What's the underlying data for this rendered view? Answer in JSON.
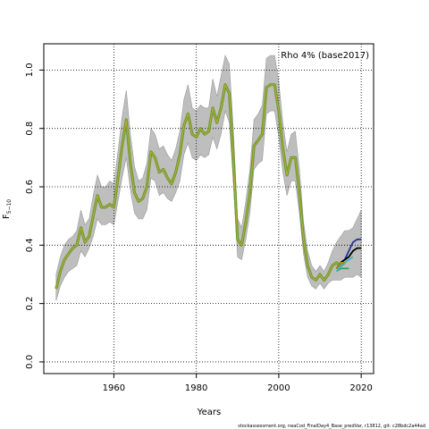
{
  "chart_data": {
    "type": "line",
    "title": "",
    "legend_text": "Rho 4% (base2017)",
    "xlabel": "Years",
    "ylabel_base": "F",
    "ylabel_sub": "5−10",
    "xlim": [
      1943,
      2023
    ],
    "ylim": [
      -0.04,
      1.09
    ],
    "xticks": [
      1960,
      1980,
      2000,
      2020
    ],
    "yticks": [
      0.0,
      0.2,
      0.4,
      0.6,
      0.8,
      1.0
    ],
    "ytick_labels": [
      "0.0",
      "0.2",
      "0.4",
      "0.6",
      "0.8",
      "1.0"
    ],
    "grid": "dotted",
    "legend_position": "top-right",
    "footer": "stockassessment.org, neaCod_FinalDay4_Base_predVar, r13812, git: c28bdc2a44ad",
    "colors": {
      "band": "#bebebe",
      "band_edge": "#999999",
      "main": "#6f9a33",
      "retro": [
        "#2ca25f",
        "#41b6c4",
        "#253494",
        "#000000",
        "#b8860b"
      ]
    },
    "series": [
      {
        "x": [
          1946,
          1947,
          1948,
          1949,
          1950,
          1951,
          1952,
          1953,
          1954,
          1955,
          1956,
          1957,
          1958,
          1959,
          1960,
          1961,
          1962,
          1963,
          1964,
          1965,
          1966,
          1967,
          1968,
          1969,
          1970,
          1971,
          1972,
          1973,
          1974,
          1975,
          1976,
          1977,
          1978,
          1979,
          1980,
          1981,
          1982,
          1983,
          1984,
          1985,
          1986,
          1987,
          1988,
          1989,
          1990,
          1991,
          1992,
          1993,
          1994,
          1995,
          1996,
          1997,
          1998,
          1999,
          2000,
          2001,
          2002,
          2003,
          2004,
          2005,
          2006,
          2007,
          2008,
          2009,
          2010,
          2011,
          2012,
          2013,
          2014,
          2015,
          2016
        ],
        "y": [
          0.25,
          0.31,
          0.35,
          0.37,
          0.39,
          0.4,
          0.46,
          0.41,
          0.43,
          0.5,
          0.57,
          0.53,
          0.53,
          0.54,
          0.53,
          0.63,
          0.74,
          0.83,
          0.68,
          0.58,
          0.55,
          0.56,
          0.6,
          0.72,
          0.7,
          0.65,
          0.66,
          0.63,
          0.61,
          0.65,
          0.71,
          0.81,
          0.85,
          0.78,
          0.77,
          0.8,
          0.78,
          0.79,
          0.87,
          0.82,
          0.87,
          0.95,
          0.92,
          0.69,
          0.42,
          0.4,
          0.48,
          0.58,
          0.74,
          0.76,
          0.78,
          0.94,
          0.95,
          0.95,
          0.86,
          0.73,
          0.64,
          0.7,
          0.7,
          0.58,
          0.42,
          0.33,
          0.29,
          0.28,
          0.3,
          0.28,
          0.3,
          0.33,
          0.34,
          0.33,
          0.34
        ],
        "lo": [
          0.21,
          0.26,
          0.29,
          0.31,
          0.32,
          0.33,
          0.38,
          0.36,
          0.39,
          0.43,
          0.49,
          0.47,
          0.47,
          0.48,
          0.47,
          0.55,
          0.63,
          0.7,
          0.59,
          0.51,
          0.49,
          0.49,
          0.52,
          0.63,
          0.62,
          0.57,
          0.58,
          0.56,
          0.55,
          0.58,
          0.62,
          0.71,
          0.75,
          0.7,
          0.69,
          0.71,
          0.7,
          0.71,
          0.77,
          0.73,
          0.78,
          0.86,
          0.82,
          0.61,
          0.36,
          0.35,
          0.42,
          0.51,
          0.66,
          0.68,
          0.69,
          0.85,
          0.86,
          0.86,
          0.77,
          0.65,
          0.57,
          0.62,
          0.62,
          0.51,
          0.37,
          0.29,
          0.26,
          0.25,
          0.27,
          0.25,
          0.27,
          0.28,
          0.28,
          0.28,
          0.29
        ],
        "hi": [
          0.3,
          0.36,
          0.4,
          0.42,
          0.43,
          0.45,
          0.52,
          0.47,
          0.49,
          0.57,
          0.64,
          0.6,
          0.6,
          0.62,
          0.61,
          0.72,
          0.84,
          0.93,
          0.78,
          0.67,
          0.62,
          0.63,
          0.68,
          0.8,
          0.78,
          0.73,
          0.74,
          0.71,
          0.69,
          0.73,
          0.79,
          0.9,
          0.95,
          0.87,
          0.86,
          0.88,
          0.87,
          0.87,
          0.97,
          0.91,
          0.98,
          1.05,
          1.02,
          0.79,
          0.49,
          0.46,
          0.55,
          0.66,
          0.83,
          0.85,
          0.88,
          1.04,
          1.05,
          1.05,
          0.96,
          0.82,
          0.72,
          0.78,
          0.79,
          0.66,
          0.48,
          0.38,
          0.33,
          0.31,
          0.33,
          0.31,
          0.34,
          0.38,
          0.41,
          0.43,
          0.45
        ]
      },
      {
        "x": [
          2014,
          2015,
          2016,
          2017
        ],
        "y": [
          0.31,
          0.32,
          0.32,
          0.32
        ]
      },
      {
        "x": [
          2014,
          2015,
          2016,
          2017,
          2018
        ],
        "y": [
          0.31,
          0.33,
          0.34,
          0.35,
          0.36
        ]
      },
      {
        "x": [
          2014,
          2015,
          2016,
          2017,
          2018,
          2019,
          2020
        ],
        "y": [
          0.32,
          0.34,
          0.35,
          0.38,
          0.41,
          0.42,
          0.42
        ]
      },
      {
        "x": [
          2014,
          2015,
          2016,
          2017,
          2018,
          2019,
          2020
        ],
        "y": [
          0.32,
          0.34,
          0.35,
          0.36,
          0.38,
          0.39,
          0.39
        ]
      },
      {
        "x": [
          2014,
          2015,
          2016
        ],
        "y": [
          0.32,
          0.34,
          0.34
        ]
      }
    ],
    "band_extension": {
      "x": [
        2016,
        2017,
        2018,
        2019,
        2020
      ],
      "lo": [
        0.29,
        0.29,
        0.29,
        0.3,
        0.29
      ],
      "hi": [
        0.45,
        0.45,
        0.46,
        0.49,
        0.52
      ]
    }
  }
}
